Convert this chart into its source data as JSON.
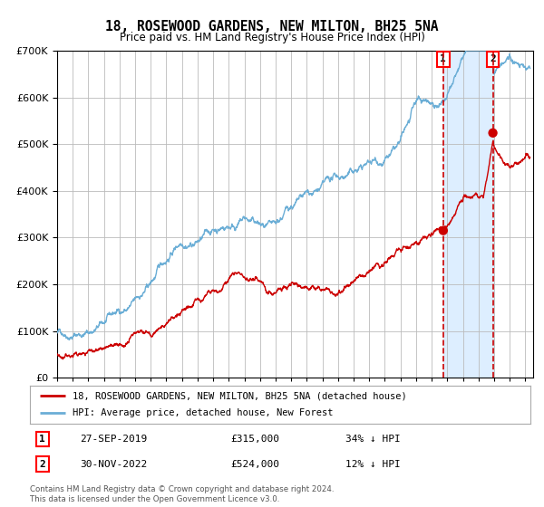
{
  "title": "18, ROSEWOOD GARDENS, NEW MILTON, BH25 5NA",
  "subtitle": "Price paid vs. HM Land Registry's House Price Index (HPI)",
  "sale1_date_num": 2019.74,
  "sale1_label": "27-SEP-2019",
  "sale1_price": 315000,
  "sale1_pct": "34% ↓ HPI",
  "sale2_date_num": 2022.92,
  "sale2_label": "30-NOV-2022",
  "sale2_price": 524000,
  "sale2_pct": "12% ↓ HPI",
  "hpi_color": "#6baed6",
  "price_color": "#cc0000",
  "shade_color": "#ddeeff",
  "grid_color": "#bbbbbb",
  "background_color": "#ffffff",
  "legend1": "18, ROSEWOOD GARDENS, NEW MILTON, BH25 5NA (detached house)",
  "legend2": "HPI: Average price, detached house, New Forest",
  "footer": "Contains HM Land Registry data © Crown copyright and database right 2024.\nThis data is licensed under the Open Government Licence v3.0.",
  "ylim": [
    0,
    700000
  ],
  "xmin": 1995.0,
  "xmax": 2025.5
}
